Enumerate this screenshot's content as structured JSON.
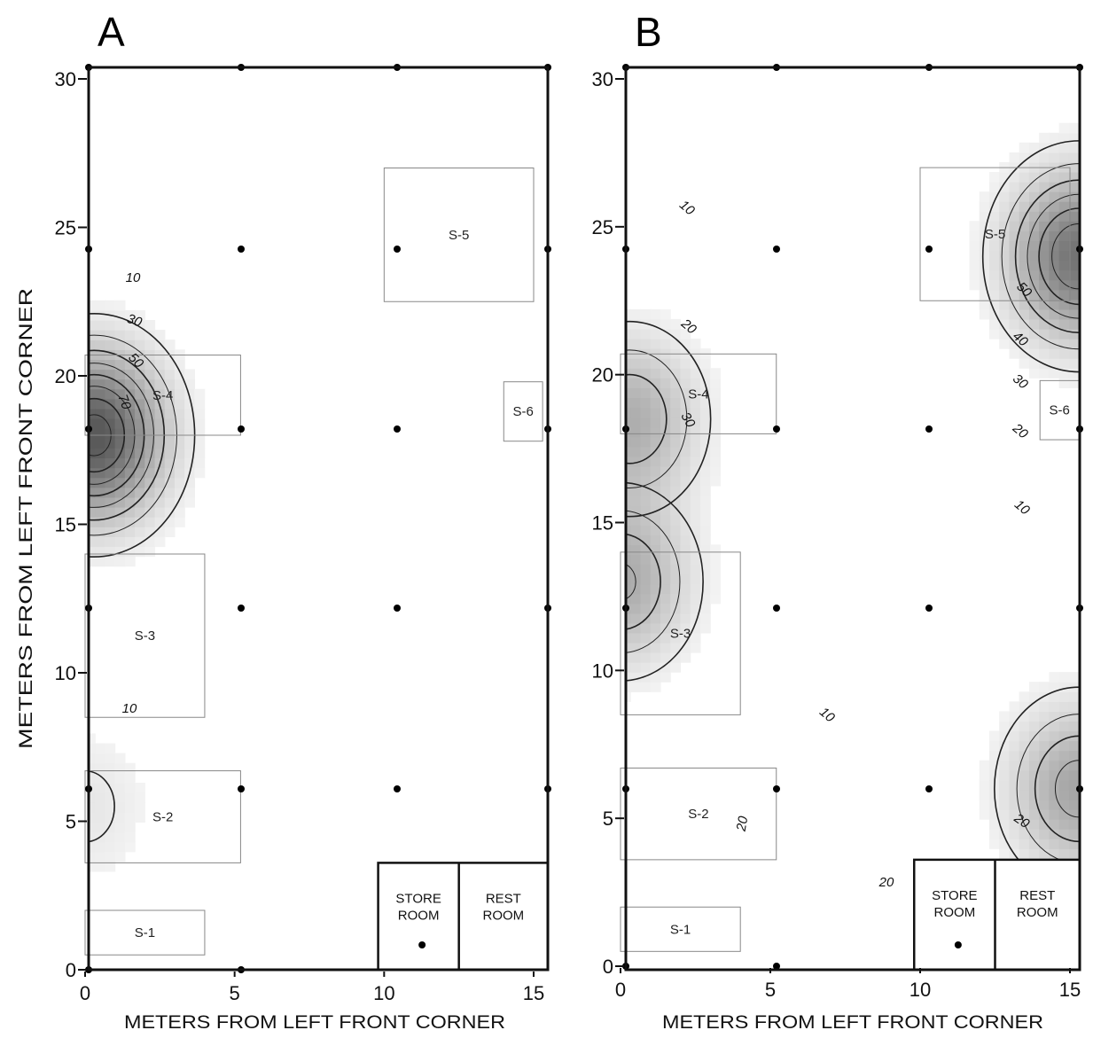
{
  "figure": {
    "axis_x_label": "METERS FROM LEFT FRONT CORNER",
    "axis_y_label": "METERS FROM LEFT FRONT CORNER"
  },
  "chart_data": [
    {
      "type": "heatmap",
      "panel_label": "A",
      "xlabel": "METERS FROM LEFT FRONT CORNER",
      "ylabel": "METERS FROM LEFT FRONT CORNER",
      "xlim": [
        0,
        15.3
      ],
      "ylim": [
        0,
        30.5
      ],
      "x_ticks": [
        0,
        5,
        10,
        15
      ],
      "y_ticks": [
        0,
        5,
        10,
        15,
        20,
        25,
        30
      ],
      "x_tick_labels": [
        "0",
        "5",
        "10",
        "15"
      ],
      "y_tick_labels": [
        "0",
        "5",
        "10",
        "15",
        "20",
        "25",
        "30"
      ],
      "grid": false,
      "contour_labels": [
        "10",
        "30",
        "50",
        "70",
        "10"
      ],
      "peaks": [
        {
          "x": 0.3,
          "y": 18.0,
          "value": 85
        },
        {
          "x": 0.0,
          "y": 5.5,
          "value": 12
        }
      ],
      "regions": [
        {
          "name": "S-1",
          "x": [
            0,
            4
          ],
          "y": [
            0.5,
            2
          ]
        },
        {
          "name": "S-2",
          "x": [
            0,
            5.2
          ],
          "y": [
            3.6,
            6.7
          ]
        },
        {
          "name": "S-3",
          "x": [
            0,
            4
          ],
          "y": [
            8.5,
            14
          ]
        },
        {
          "name": "S-4",
          "x": [
            0,
            5.2
          ],
          "y": [
            18,
            20.7
          ]
        },
        {
          "name": "S-5",
          "x": [
            10,
            15
          ],
          "y": [
            22.5,
            27
          ]
        },
        {
          "name": "S-6",
          "x": [
            14,
            15.3
          ],
          "y": [
            17.8,
            19.8
          ]
        }
      ],
      "rooms": [
        {
          "name_line1": "STORE",
          "name_line2": "ROOM"
        },
        {
          "name_line1": "REST",
          "name_line2": "ROOM"
        }
      ]
    },
    {
      "type": "heatmap",
      "panel_label": "B",
      "xlabel": "METERS FROM LEFT FRONT CORNER",
      "ylabel": "",
      "xlim": [
        0,
        15.3
      ],
      "ylim": [
        0,
        30.5
      ],
      "x_ticks": [
        0,
        5,
        10,
        15
      ],
      "y_ticks": [
        0,
        5,
        10,
        15,
        20,
        25,
        30
      ],
      "x_tick_labels": [
        "0",
        "5",
        "10",
        "15"
      ],
      "y_tick_labels": [
        "0",
        "5",
        "10",
        "15",
        "20",
        "25",
        "30"
      ],
      "grid": false,
      "contour_labels": [
        "10",
        "20",
        "30",
        "20",
        "50",
        "40",
        "30",
        "20",
        "10",
        "10",
        "20",
        "20"
      ],
      "peaks": [
        {
          "x": 0.0,
          "y": 13.0,
          "value": 42
        },
        {
          "x": 0.3,
          "y": 18.5,
          "value": 40
        },
        {
          "x": 15.3,
          "y": 24.0,
          "value": 70
        },
        {
          "x": 15.3,
          "y": 6.0,
          "value": 45
        }
      ],
      "regions": [
        {
          "name": "S-1",
          "x": [
            0,
            4
          ],
          "y": [
            0.5,
            2
          ]
        },
        {
          "name": "S-2",
          "x": [
            0,
            5.2
          ],
          "y": [
            3.6,
            6.7
          ]
        },
        {
          "name": "S-3",
          "x": [
            0,
            4
          ],
          "y": [
            8.5,
            14
          ]
        },
        {
          "name": "S-4",
          "x": [
            0,
            5.2
          ],
          "y": [
            18,
            20.7
          ]
        },
        {
          "name": "S-5",
          "x": [
            10,
            15
          ],
          "y": [
            22.5,
            27
          ]
        },
        {
          "name": "S-6",
          "x": [
            14,
            15.3
          ],
          "y": [
            17.8,
            19.8
          ]
        }
      ],
      "rooms": [
        {
          "name_line1": "STORE",
          "name_line2": "ROOM"
        },
        {
          "name_line1": "REST",
          "name_line2": "ROOM"
        }
      ]
    }
  ]
}
